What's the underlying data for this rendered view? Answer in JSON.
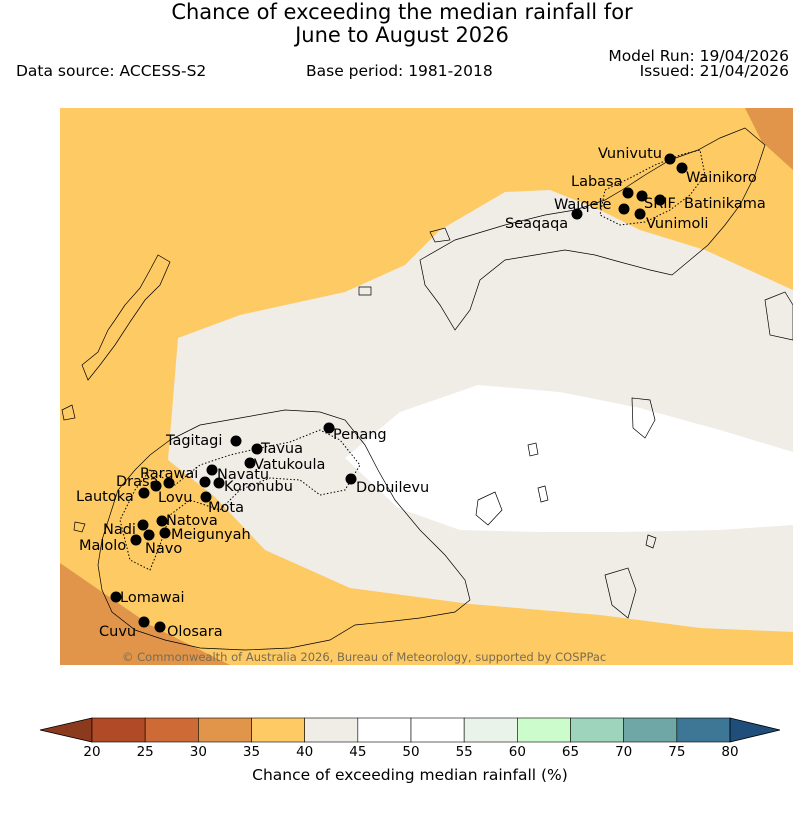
{
  "header": {
    "title_line1": "Chance of exceeding the median rainfall for",
    "title_line2": "June to August 2026",
    "data_source": "Data source: ACCESS-S2",
    "base_period": "Base period: 1981-2018",
    "model_run": "Model Run: 19/04/2026",
    "issued": "Issued: 21/04/2026"
  },
  "map": {
    "copyright": "© Commonwealth of Australia 2026, Bureau of Meteorology, supported by COSPPac",
    "stations": [
      "Vunivutu",
      "Wainikoro",
      "Labasa",
      "Waiqele",
      "SRIF",
      "Batinikama",
      "Seaqaqa",
      "Vunimoli",
      "Tagitagi",
      "Tavua",
      "Penang",
      "Vatukoula",
      "Rarawai",
      "Navatu",
      "Drasa",
      "Koronubu",
      "Lautoka",
      "Lovu",
      "Dobuilevu",
      "Mota",
      "Natova",
      "Nadi",
      "Meigunyah",
      "Malolo",
      "Navo",
      "Lomawai",
      "Cuvu",
      "Olosara"
    ]
  },
  "colorbar": {
    "title": "Chance of exceeding median rainfall (%)",
    "ticks": [
      "20",
      "25",
      "30",
      "35",
      "40",
      "45",
      "50",
      "55",
      "60",
      "65",
      "70",
      "75",
      "80"
    ],
    "colors": [
      "#8b3a1e",
      "#b04a27",
      "#cd6a35",
      "#e0954a",
      "#fdca63",
      "#f0ece6",
      "#ffffff",
      "#ffffff",
      "#eaf3ea",
      "#ccfccc",
      "#9ed4bb",
      "#6fa7a6",
      "#3d7795",
      "#1f4e7b"
    ]
  }
}
